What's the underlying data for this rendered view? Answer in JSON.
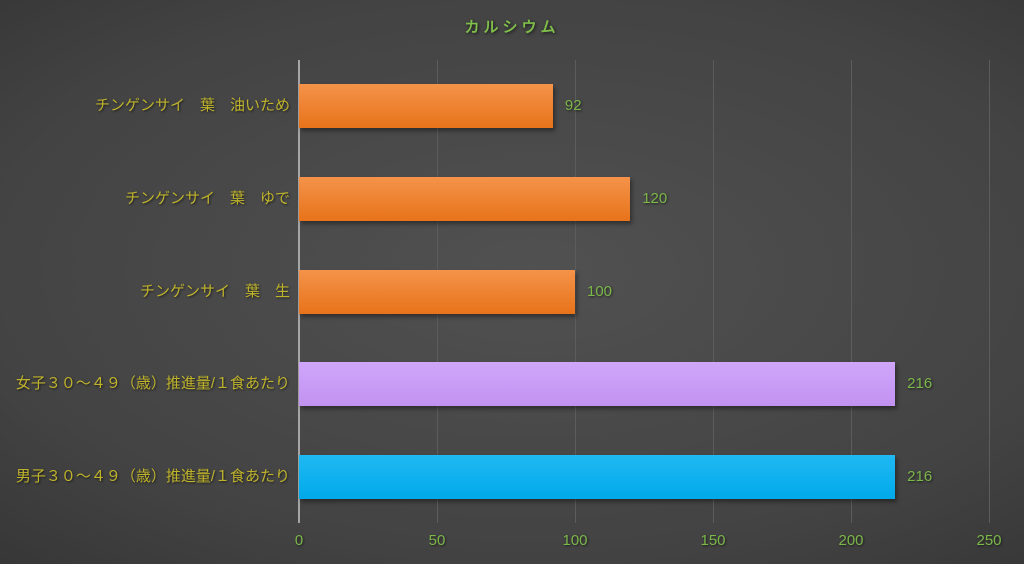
{
  "chart_data": {
    "type": "bar",
    "orientation": "horizontal",
    "title": "カルシウム",
    "categories": [
      "チンゲンサイ　葉　油いため",
      "チンゲンサイ　葉　ゆで",
      "チンゲンサイ　葉　生",
      "女子３０～４９（歳）推進量/１食あたり",
      "男子３０～４９（歳）推進量/１食あたり"
    ],
    "values": [
      92,
      120,
      100,
      216,
      216
    ],
    "bar_colors": [
      "#ED7D31",
      "#ED7D31",
      "#ED7D31",
      "#C9A0F0",
      "#00B0F0"
    ],
    "bar_gradients": [
      {
        "top": "#F4934A",
        "bottom": "#E8731A"
      },
      {
        "top": "#F4934A",
        "bottom": "#E8731A"
      },
      {
        "top": "#F4934A",
        "bottom": "#E8731A"
      },
      {
        "top": "#CFA6FA",
        "bottom": "#C292F0"
      },
      {
        "top": "#20B9F3",
        "bottom": "#00A9E9"
      }
    ],
    "x_ticks": [
      0,
      50,
      100,
      150,
      200,
      250
    ],
    "xlim": [
      0,
      250
    ],
    "xlabel": "",
    "ylabel": "",
    "grid": true,
    "legend": false
  },
  "style": {
    "background_center": "#515151",
    "background_edge": "#242424",
    "title_color": "#80BF4A",
    "category_color": "#BFB32C",
    "value_color": "#7CB74A",
    "tick_color": "#7CB74A",
    "axis_line_color": "#A6A6A6",
    "gridline_color": "#5C5C5C"
  }
}
